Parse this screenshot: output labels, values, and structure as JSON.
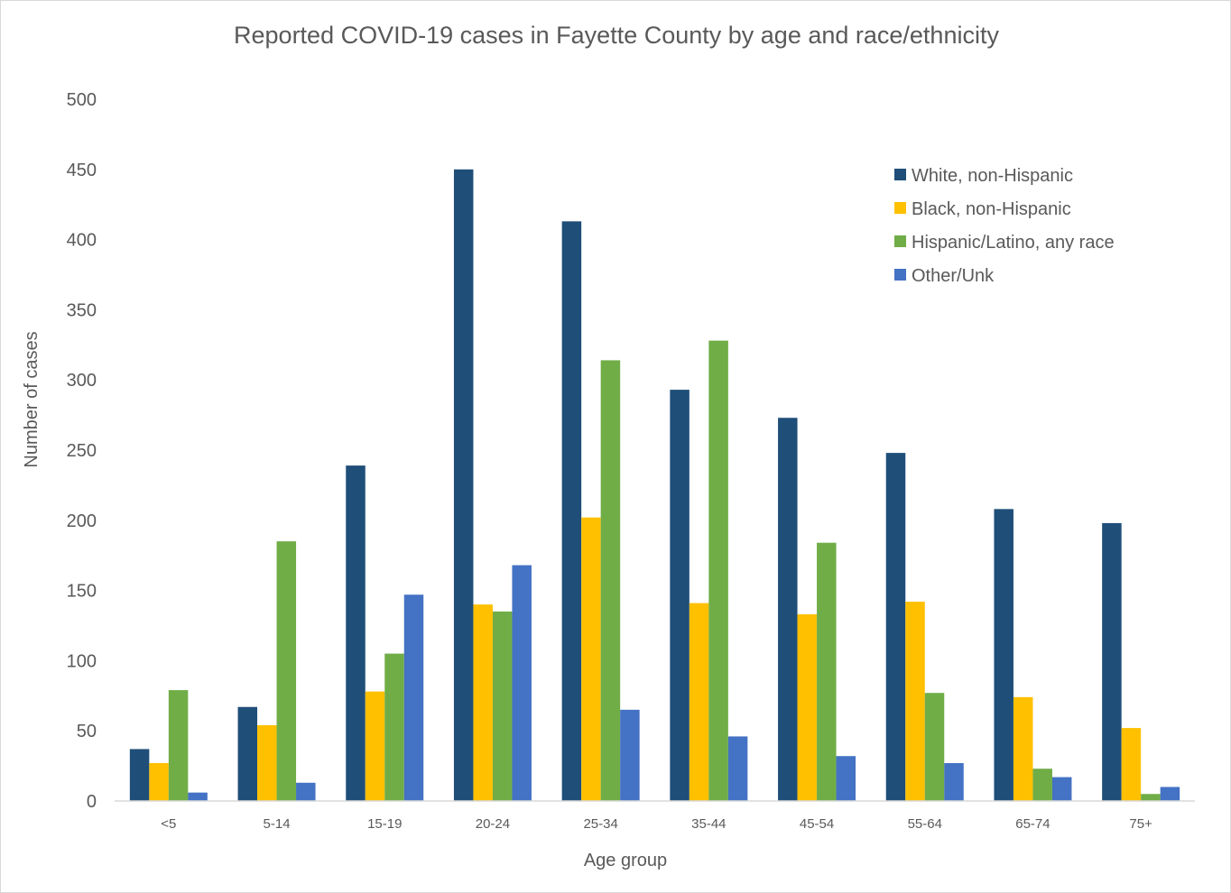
{
  "chart_data": {
    "type": "bar",
    "title": "Reported COVID-19 cases in Fayette County by age and race/ethnicity",
    "xlabel": "Age group",
    "ylabel": "Number of cases",
    "ylim": [
      0,
      500
    ],
    "yticks": [
      0,
      50,
      100,
      150,
      200,
      250,
      300,
      350,
      400,
      450,
      500
    ],
    "grid": false,
    "legend_position": "top-right",
    "categories": [
      "<5",
      "5-14",
      "15-19",
      "20-24",
      "25-34",
      "35-44",
      "45-54",
      "55-64",
      "65-74",
      "75+"
    ],
    "series": [
      {
        "name": "White, non-Hispanic",
        "color": "#1f4e79",
        "values": [
          37,
          67,
          239,
          450,
          413,
          293,
          273,
          248,
          208,
          198
        ]
      },
      {
        "name": "Black, non-Hispanic",
        "color": "#ffc000",
        "values": [
          27,
          54,
          78,
          140,
          202,
          141,
          133,
          142,
          74,
          52
        ]
      },
      {
        "name": "Hispanic/Latino, any race",
        "color": "#70ad47",
        "values": [
          79,
          185,
          105,
          135,
          314,
          328,
          184,
          77,
          23,
          5
        ]
      },
      {
        "name": "Other/Unk",
        "color": "#4472c4",
        "values": [
          6,
          13,
          147,
          168,
          65,
          46,
          32,
          27,
          17,
          10
        ]
      }
    ]
  }
}
